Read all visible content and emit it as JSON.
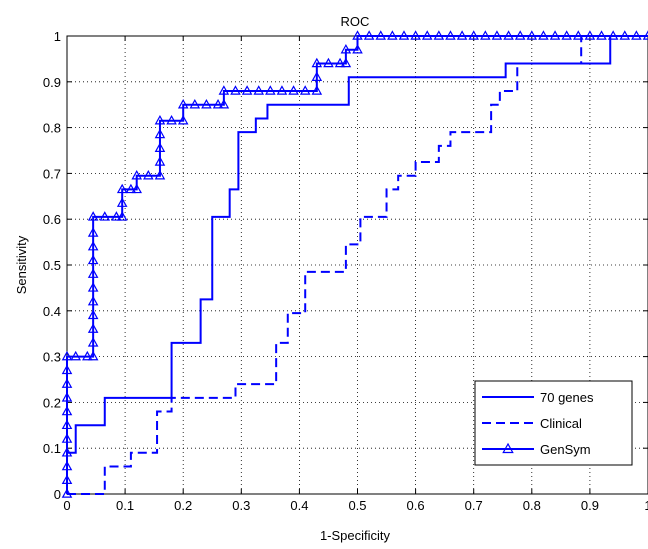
{
  "chart_data": {
    "type": "line",
    "title": "ROC",
    "xlabel": "1-Specificity",
    "ylabel": "Sensitivity",
    "xlim": [
      0,
      1
    ],
    "ylim": [
      0,
      1
    ],
    "xticks": [
      0,
      0.1,
      0.2,
      0.3,
      0.4,
      0.5,
      0.6,
      0.7,
      0.8,
      0.9,
      1
    ],
    "yticks": [
      0,
      0.1,
      0.2,
      0.3,
      0.4,
      0.5,
      0.6,
      0.7,
      0.8,
      0.9,
      1
    ],
    "xtick_labels": [
      "0",
      "0.1",
      "0.2",
      "0.3",
      "0.4",
      "0.5",
      "0.6",
      "0.7",
      "0.8",
      "0.9",
      "1"
    ],
    "ytick_labels": [
      "0",
      "0.1",
      "0.2",
      "0.3",
      "0.4",
      "0.5",
      "0.6",
      "0.7",
      "0.8",
      "0.9",
      "1"
    ],
    "grid": true,
    "legend_position": "bottom-right",
    "line_color": "#0000ff",
    "series": [
      {
        "name": "70 genes",
        "style": "solid",
        "marker": "none",
        "points": [
          [
            0,
            0
          ],
          [
            0,
            0.09
          ],
          [
            0.015,
            0.09
          ],
          [
            0.015,
            0.15
          ],
          [
            0.065,
            0.15
          ],
          [
            0.065,
            0.21
          ],
          [
            0.18,
            0.21
          ],
          [
            0.18,
            0.33
          ],
          [
            0.23,
            0.33
          ],
          [
            0.23,
            0.425
          ],
          [
            0.25,
            0.425
          ],
          [
            0.25,
            0.605
          ],
          [
            0.28,
            0.605
          ],
          [
            0.28,
            0.665
          ],
          [
            0.295,
            0.665
          ],
          [
            0.295,
            0.79
          ],
          [
            0.325,
            0.79
          ],
          [
            0.325,
            0.82
          ],
          [
            0.345,
            0.82
          ],
          [
            0.345,
            0.85
          ],
          [
            0.485,
            0.85
          ],
          [
            0.485,
            0.91
          ],
          [
            0.755,
            0.91
          ],
          [
            0.755,
            0.94
          ],
          [
            0.935,
            0.94
          ],
          [
            0.935,
            1.0
          ],
          [
            1,
            1.0
          ]
        ]
      },
      {
        "name": "Clinical",
        "style": "dashed",
        "marker": "none",
        "points": [
          [
            0,
            0
          ],
          [
            0.065,
            0
          ],
          [
            0.065,
            0.06
          ],
          [
            0.11,
            0.06
          ],
          [
            0.11,
            0.09
          ],
          [
            0.155,
            0.09
          ],
          [
            0.155,
            0.18
          ],
          [
            0.18,
            0.18
          ],
          [
            0.18,
            0.21
          ],
          [
            0.29,
            0.21
          ],
          [
            0.29,
            0.24
          ],
          [
            0.36,
            0.24
          ],
          [
            0.36,
            0.33
          ],
          [
            0.38,
            0.33
          ],
          [
            0.38,
            0.395
          ],
          [
            0.41,
            0.395
          ],
          [
            0.41,
            0.485
          ],
          [
            0.48,
            0.485
          ],
          [
            0.48,
            0.545
          ],
          [
            0.505,
            0.545
          ],
          [
            0.505,
            0.605
          ],
          [
            0.55,
            0.605
          ],
          [
            0.55,
            0.665
          ],
          [
            0.57,
            0.665
          ],
          [
            0.57,
            0.695
          ],
          [
            0.6,
            0.695
          ],
          [
            0.6,
            0.725
          ],
          [
            0.64,
            0.725
          ],
          [
            0.64,
            0.76
          ],
          [
            0.66,
            0.76
          ],
          [
            0.66,
            0.79
          ],
          [
            0.73,
            0.79
          ],
          [
            0.73,
            0.85
          ],
          [
            0.745,
            0.85
          ],
          [
            0.745,
            0.88
          ],
          [
            0.775,
            0.88
          ],
          [
            0.775,
            0.94
          ],
          [
            0.885,
            0.94
          ],
          [
            0.885,
            1.0
          ],
          [
            1,
            1.0
          ]
        ]
      },
      {
        "name": "GenSym",
        "style": "solid",
        "marker": "triangle",
        "points": [
          [
            0,
            0
          ],
          [
            0,
            0.03
          ],
          [
            0,
            0.06
          ],
          [
            0,
            0.09
          ],
          [
            0,
            0.12
          ],
          [
            0,
            0.15
          ],
          [
            0,
            0.18
          ],
          [
            0,
            0.21
          ],
          [
            0,
            0.24
          ],
          [
            0,
            0.27
          ],
          [
            0,
            0.3
          ],
          [
            0.015,
            0.3
          ],
          [
            0.035,
            0.3
          ],
          [
            0.045,
            0.3
          ],
          [
            0.045,
            0.33
          ],
          [
            0.045,
            0.36
          ],
          [
            0.045,
            0.39
          ],
          [
            0.045,
            0.42
          ],
          [
            0.045,
            0.45
          ],
          [
            0.045,
            0.48
          ],
          [
            0.045,
            0.51
          ],
          [
            0.045,
            0.54
          ],
          [
            0.045,
            0.57
          ],
          [
            0.045,
            0.605
          ],
          [
            0.065,
            0.605
          ],
          [
            0.085,
            0.605
          ],
          [
            0.095,
            0.605
          ],
          [
            0.095,
            0.635
          ],
          [
            0.095,
            0.665
          ],
          [
            0.11,
            0.665
          ],
          [
            0.12,
            0.665
          ],
          [
            0.12,
            0.695
          ],
          [
            0.14,
            0.695
          ],
          [
            0.16,
            0.695
          ],
          [
            0.16,
            0.725
          ],
          [
            0.16,
            0.755
          ],
          [
            0.16,
            0.785
          ],
          [
            0.16,
            0.815
          ],
          [
            0.18,
            0.815
          ],
          [
            0.2,
            0.815
          ],
          [
            0.2,
            0.85
          ],
          [
            0.22,
            0.85
          ],
          [
            0.24,
            0.85
          ],
          [
            0.26,
            0.85
          ],
          [
            0.27,
            0.85
          ],
          [
            0.27,
            0.88
          ],
          [
            0.29,
            0.88
          ],
          [
            0.31,
            0.88
          ],
          [
            0.33,
            0.88
          ],
          [
            0.35,
            0.88
          ],
          [
            0.37,
            0.88
          ],
          [
            0.39,
            0.88
          ],
          [
            0.41,
            0.88
          ],
          [
            0.43,
            0.88
          ],
          [
            0.43,
            0.91
          ],
          [
            0.43,
            0.94
          ],
          [
            0.45,
            0.94
          ],
          [
            0.47,
            0.94
          ],
          [
            0.48,
            0.94
          ],
          [
            0.48,
            0.97
          ],
          [
            0.5,
            0.97
          ],
          [
            0.5,
            1.0
          ],
          [
            0.52,
            1.0
          ],
          [
            0.54,
            1.0
          ],
          [
            0.56,
            1.0
          ],
          [
            0.58,
            1.0
          ],
          [
            0.6,
            1.0
          ],
          [
            0.62,
            1.0
          ],
          [
            0.64,
            1.0
          ],
          [
            0.66,
            1.0
          ],
          [
            0.68,
            1.0
          ],
          [
            0.7,
            1.0
          ],
          [
            0.72,
            1.0
          ],
          [
            0.74,
            1.0
          ],
          [
            0.76,
            1.0
          ],
          [
            0.78,
            1.0
          ],
          [
            0.8,
            1.0
          ],
          [
            0.82,
            1.0
          ],
          [
            0.84,
            1.0
          ],
          [
            0.86,
            1.0
          ],
          [
            0.88,
            1.0
          ],
          [
            0.9,
            1.0
          ],
          [
            0.92,
            1.0
          ],
          [
            0.94,
            1.0
          ],
          [
            0.96,
            1.0
          ],
          [
            0.98,
            1.0
          ],
          [
            1,
            1.0
          ]
        ]
      }
    ]
  }
}
